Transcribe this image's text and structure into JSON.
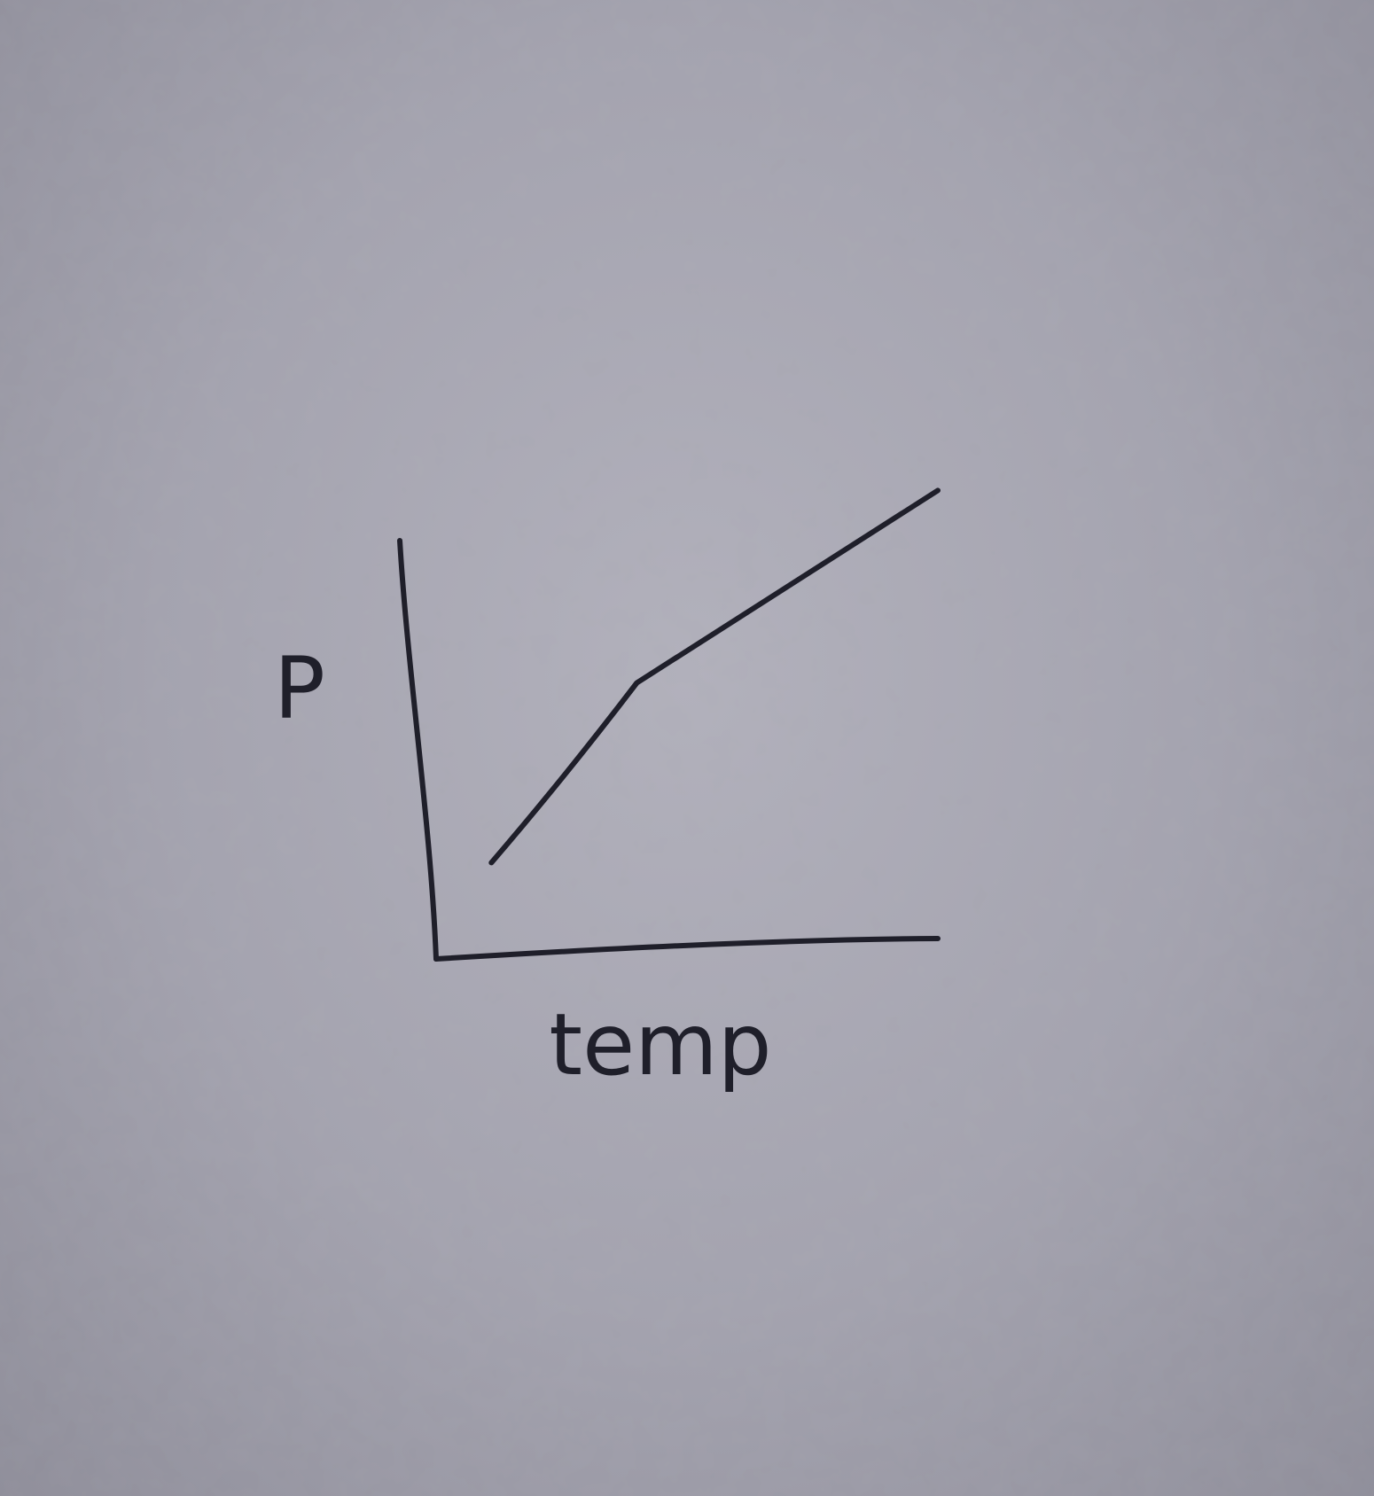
{
  "chart_data": {
    "type": "line",
    "title": "",
    "xlabel": "temp",
    "ylabel": "P",
    "xlim": [
      0,
      10
    ],
    "ylim": [
      0,
      10
    ],
    "grid": false,
    "legend": "none",
    "tick_labels": false,
    "series": [
      {
        "x": [
          1.1,
          4.0,
          10
        ],
        "y": [
          2.3,
          6.6,
          11.2
        ]
      }
    ]
  },
  "colors": {
    "ink": "#1f1f2a",
    "paper": "#a8a7b2"
  }
}
